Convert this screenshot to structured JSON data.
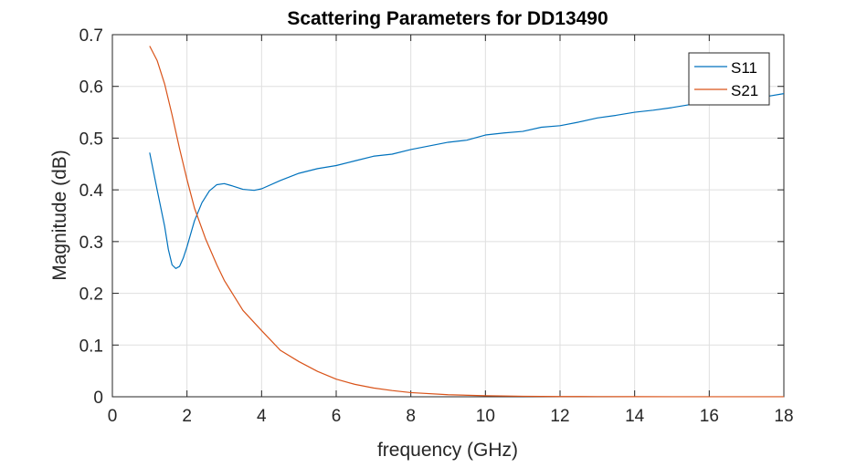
{
  "chart_data": {
    "type": "line",
    "title": "Scattering Parameters for DD13490",
    "xlabel": "frequency (GHz)",
    "ylabel": "Magnitude (dB)",
    "xlim": [
      0,
      18
    ],
    "ylim": [
      0,
      0.7
    ],
    "xticks": [
      0,
      2,
      4,
      6,
      8,
      10,
      12,
      14,
      16,
      18
    ],
    "yticks": [
      0,
      0.1,
      0.2,
      0.3,
      0.4,
      0.5,
      0.6,
      0.7
    ],
    "xtick_labels": [
      "0",
      "2",
      "4",
      "6",
      "8",
      "10",
      "12",
      "14",
      "16",
      "18"
    ],
    "ytick_labels": [
      "0",
      "0.1",
      "0.2",
      "0.3",
      "0.4",
      "0.5",
      "0.6",
      "0.7"
    ],
    "grid": true,
    "legend_position": "top-right",
    "series": [
      {
        "name": "S11",
        "color": "#0072BD",
        "x": [
          1.0,
          1.2,
          1.4,
          1.5,
          1.6,
          1.7,
          1.8,
          1.9,
          2.0,
          2.2,
          2.4,
          2.6,
          2.8,
          3.0,
          3.2,
          3.5,
          3.8,
          4.0,
          4.5,
          5.0,
          5.5,
          6.0,
          6.5,
          7.0,
          7.5,
          8.0,
          8.5,
          9.0,
          9.5,
          10.0,
          10.5,
          11.0,
          11.5,
          12.0,
          12.5,
          13.0,
          13.5,
          14.0,
          14.5,
          15.0,
          15.5,
          16.0,
          16.5,
          17.0,
          17.5,
          18.0
        ],
        "values": [
          0.472,
          0.4,
          0.33,
          0.285,
          0.255,
          0.248,
          0.252,
          0.268,
          0.29,
          0.34,
          0.375,
          0.398,
          0.41,
          0.412,
          0.408,
          0.401,
          0.399,
          0.402,
          0.418,
          0.432,
          0.441,
          0.447,
          0.456,
          0.465,
          0.469,
          0.478,
          0.485,
          0.492,
          0.496,
          0.506,
          0.51,
          0.513,
          0.521,
          0.524,
          0.531,
          0.539,
          0.544,
          0.55,
          0.554,
          0.559,
          0.565,
          0.566,
          0.571,
          0.576,
          0.58,
          0.586
        ]
      },
      {
        "name": "S21",
        "color": "#D95319",
        "x": [
          1.0,
          1.2,
          1.4,
          1.6,
          1.8,
          2.0,
          2.2,
          2.5,
          2.8,
          3.0,
          3.5,
          4.0,
          4.5,
          5.0,
          5.5,
          6.0,
          6.5,
          7.0,
          7.5,
          8.0,
          9.0,
          10.0,
          11.0,
          12.0,
          13.0,
          14.0,
          15.0,
          16.0,
          17.0,
          18.0
        ],
        "values": [
          0.678,
          0.65,
          0.605,
          0.545,
          0.48,
          0.42,
          0.365,
          0.305,
          0.255,
          0.225,
          0.167,
          0.128,
          0.09,
          0.068,
          0.049,
          0.034,
          0.024,
          0.017,
          0.012,
          0.008,
          0.004,
          0.002,
          0.001,
          0.0005,
          0.0003,
          0.0002,
          0.0001,
          0.0001,
          0.0001,
          0.0001
        ]
      }
    ]
  }
}
